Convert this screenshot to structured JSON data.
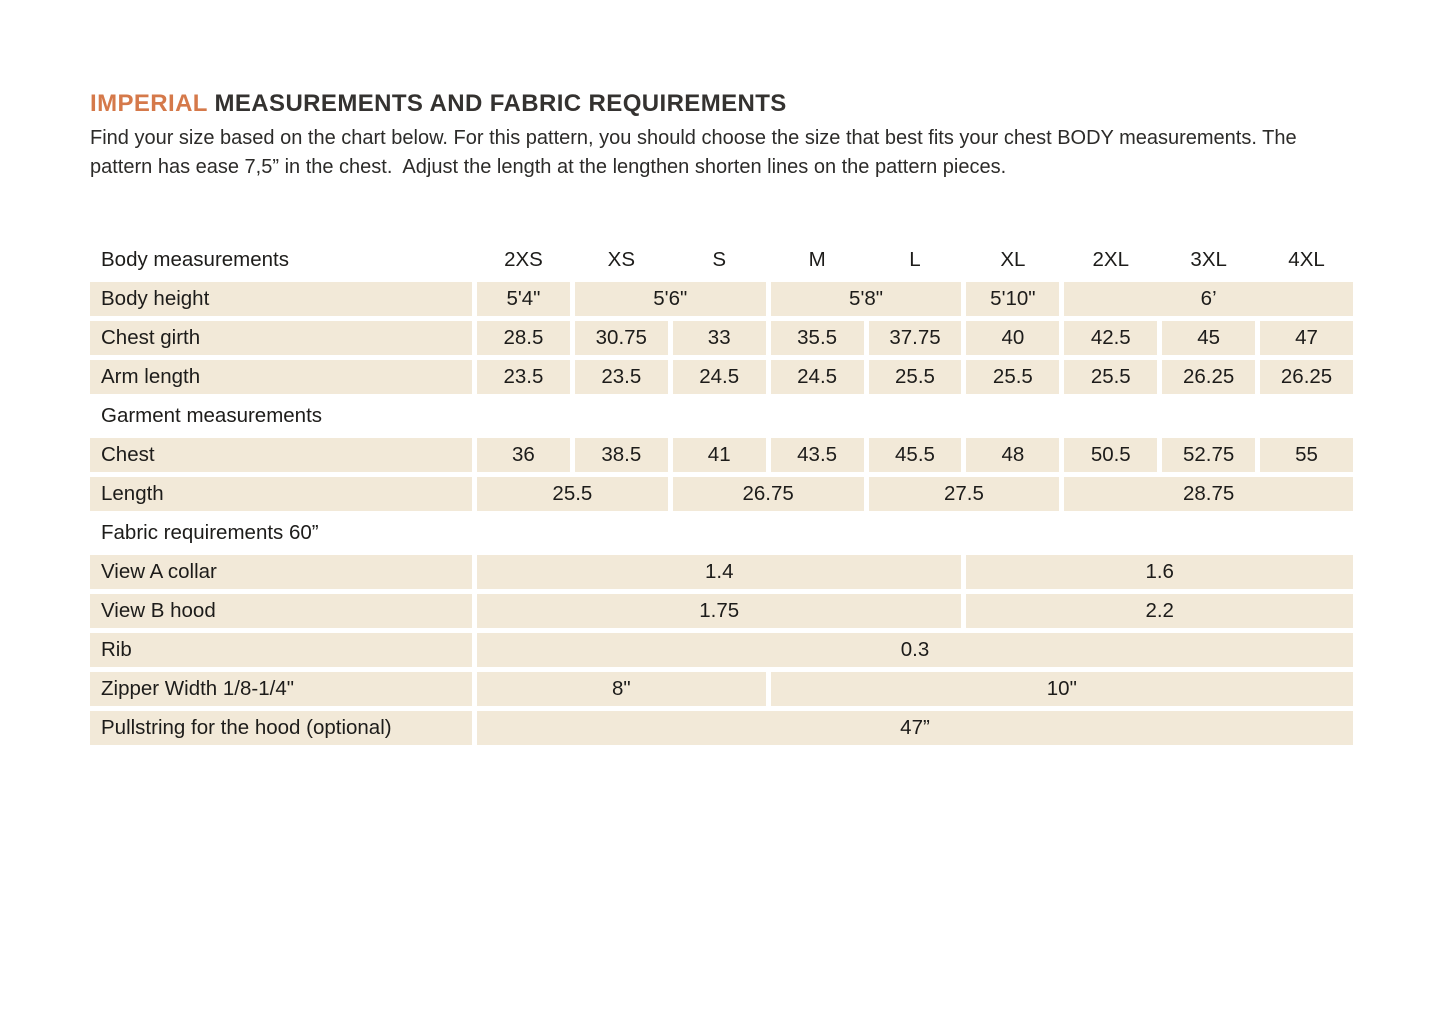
{
  "colors": {
    "accent": "#d5794a",
    "row_bg": "#f2e9d8",
    "text": "#1d1c1a"
  },
  "title": {
    "highlight": "IMPERIAL",
    "rest": " MEASUREMENTS AND FABRIC REQUIREMENTS"
  },
  "intro": "Find your size based on the chart below. For this pattern, you should choose the size that best fits your chest BODY measurements. The pattern has ease 7,5” in the chest.  Adjust the length at the lengthen shorten lines on the pattern pieces.",
  "table": {
    "header_label": "Body measurements",
    "sizes": [
      "2XS",
      "XS",
      "S",
      "M",
      "L",
      "XL",
      "2XL",
      "3XL",
      "4XL"
    ],
    "body_height": {
      "label": "Body height",
      "cells": [
        "5'4\"",
        "5'6\"",
        "5'8\"",
        "5'10\"",
        "6’"
      ]
    },
    "chest_girth": {
      "label": "Chest girth",
      "cells": [
        "28.5",
        "30.75",
        "33",
        "35.5",
        "37.75",
        "40",
        "42.5",
        "45",
        "47"
      ]
    },
    "arm_length": {
      "label": "Arm length",
      "cells": [
        "23.5",
        "23.5",
        "24.5",
        "24.5",
        "25.5",
        "25.5",
        "25.5",
        "26.25",
        "26.25"
      ]
    },
    "garment_section": "Garment measurements",
    "chest": {
      "label": "Chest",
      "cells": [
        "36",
        "38.5",
        "41",
        "43.5",
        "45.5",
        "48",
        "50.5",
        "52.75",
        "55"
      ]
    },
    "length": {
      "label": "Length",
      "cells": [
        "25.5",
        "26.75",
        "27.5",
        "28.75"
      ]
    },
    "fabric_section": "Fabric requirements 60”",
    "view_a": {
      "label": "View A collar",
      "cells": [
        "1.4",
        "1.6"
      ]
    },
    "view_b": {
      "label": "View B hood",
      "cells": [
        "1.75",
        "2.2"
      ]
    },
    "rib": {
      "label": "Rib",
      "cells": [
        "0.3"
      ]
    },
    "zipper": {
      "label": "Zipper Width 1/8-1/4\"",
      "cells": [
        "8\"",
        "10\""
      ]
    },
    "pullstring": {
      "label": "Pullstring for the hood (optional)",
      "cells": [
        "47”"
      ]
    }
  }
}
